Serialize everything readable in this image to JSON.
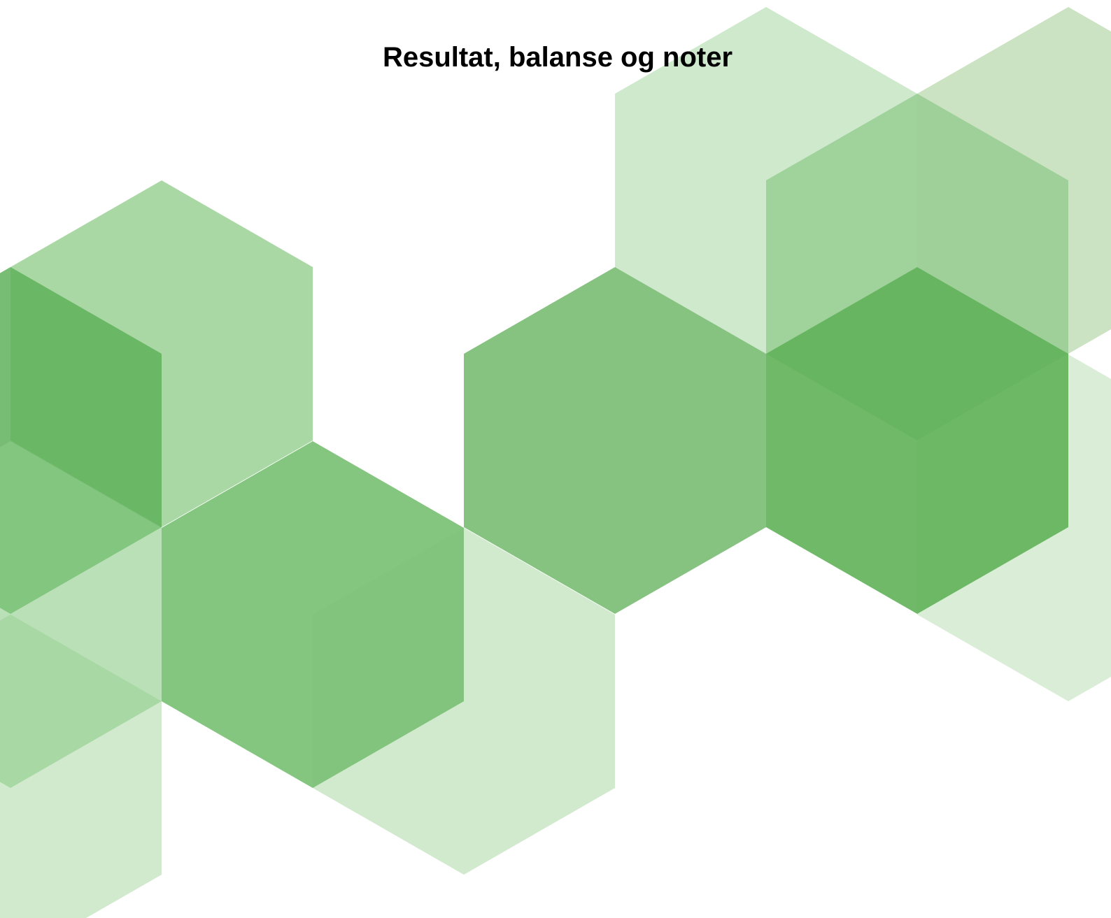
{
  "header": {
    "title": "Resultat, balanse og noter"
  }
}
